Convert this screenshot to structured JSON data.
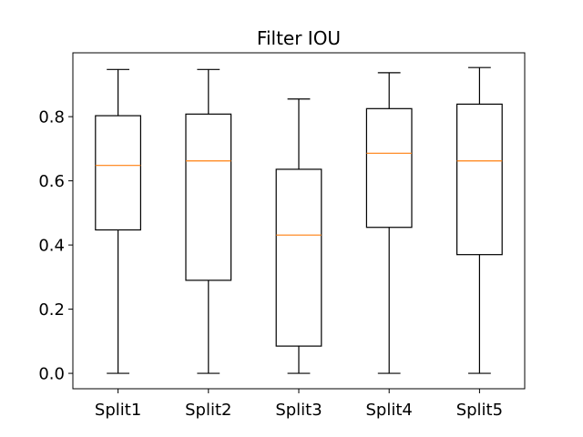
{
  "chart_data": {
    "type": "box",
    "title": "Filter IOU",
    "xlabel": "",
    "ylabel": "",
    "categories": [
      "Split1",
      "Split2",
      "Split3",
      "Split4",
      "Split5"
    ],
    "boxes": [
      {
        "label": "Split1",
        "whisker_low": 0.0,
        "q1": 0.447,
        "median": 0.648,
        "q3": 0.803,
        "whisker_high": 0.947
      },
      {
        "label": "Split2",
        "whisker_low": 0.0,
        "q1": 0.29,
        "median": 0.662,
        "q3": 0.808,
        "whisker_high": 0.947
      },
      {
        "label": "Split3",
        "whisker_low": 0.0,
        "q1": 0.085,
        "median": 0.431,
        "q3": 0.636,
        "whisker_high": 0.855
      },
      {
        "label": "Split4",
        "whisker_low": 0.0,
        "q1": 0.455,
        "median": 0.686,
        "q3": 0.825,
        "whisker_high": 0.937
      },
      {
        "label": "Split5",
        "whisker_low": 0.0,
        "q1": 0.37,
        "median": 0.662,
        "q3": 0.839,
        "whisker_high": 0.953
      }
    ],
    "ylim": [
      -0.048,
      0.999
    ],
    "yticks": [
      0.0,
      0.2,
      0.4,
      0.6,
      0.8
    ],
    "ytick_labels": [
      "0.0",
      "0.2",
      "0.4",
      "0.6",
      "0.8"
    ],
    "grid": false,
    "colors": {
      "box": "#000000",
      "median": "#ff7f0e",
      "whisker": "#000000",
      "axes": "#000000",
      "background": "#ffffff"
    }
  }
}
